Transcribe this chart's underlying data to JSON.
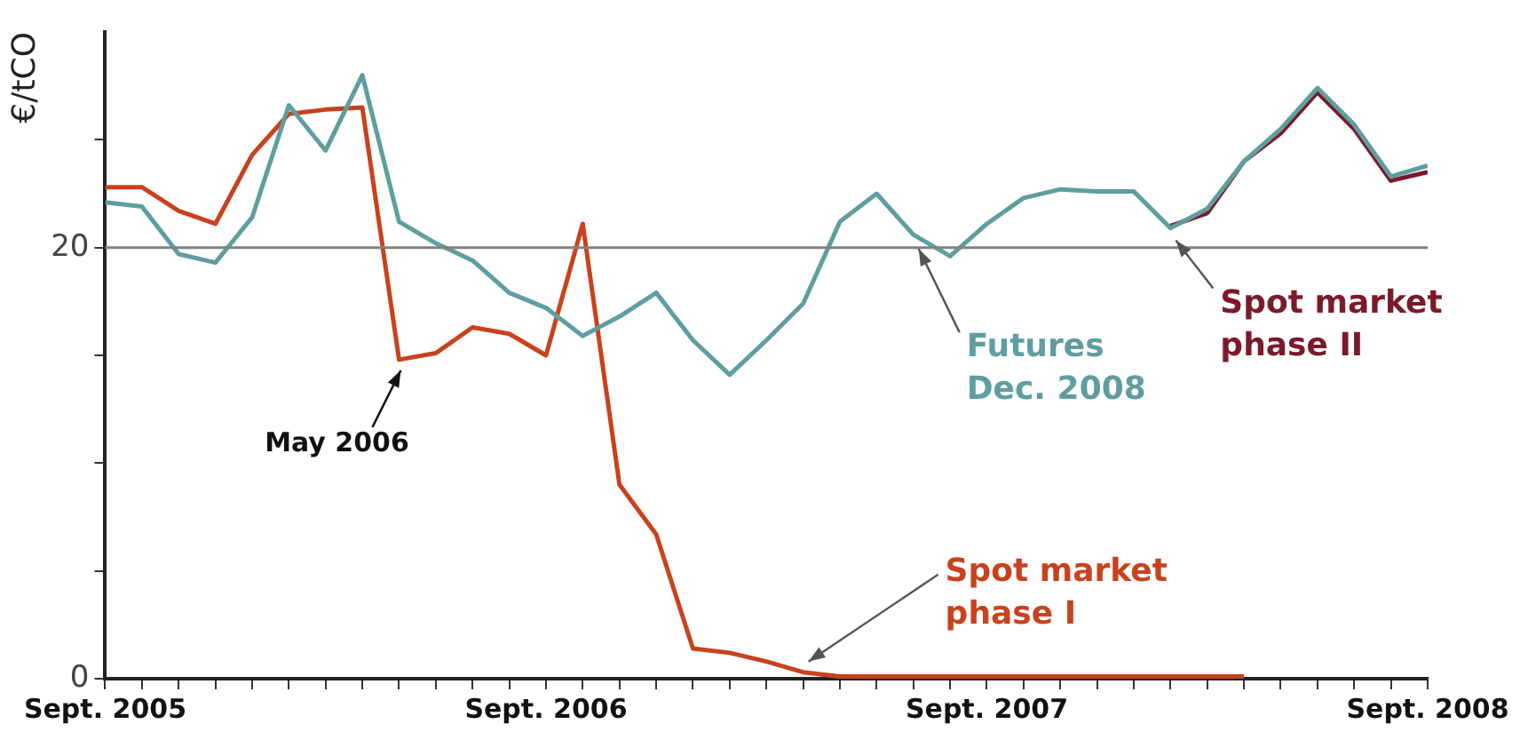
{
  "chart_data": {
    "type": "line",
    "ylabel": "€/tCO",
    "xlim": [
      "2005-09",
      "2008-09"
    ],
    "ylim": [
      0,
      30
    ],
    "xticks": [
      {
        "value": "2005-09",
        "label": "Sept. 2005"
      },
      {
        "value": "2005-10",
        "label": null
      },
      {
        "value": "2005-11",
        "label": null
      },
      {
        "value": "2005-12",
        "label": null
      },
      {
        "value": "2006-01",
        "label": null
      },
      {
        "value": "2006-02",
        "label": null
      },
      {
        "value": "2006-03",
        "label": null
      },
      {
        "value": "2006-04",
        "label": null
      },
      {
        "value": "2006-05",
        "label": null
      },
      {
        "value": "2006-06",
        "label": null
      },
      {
        "value": "2006-07",
        "label": null
      },
      {
        "value": "2006-08",
        "label": null
      },
      {
        "value": "2006-09",
        "label": "Sept. 2006"
      },
      {
        "value": "2006-10",
        "label": null
      },
      {
        "value": "2006-11",
        "label": null
      },
      {
        "value": "2006-12",
        "label": null
      },
      {
        "value": "2007-01",
        "label": null
      },
      {
        "value": "2007-02",
        "label": null
      },
      {
        "value": "2007-03",
        "label": null
      },
      {
        "value": "2007-04",
        "label": null
      },
      {
        "value": "2007-05",
        "label": null
      },
      {
        "value": "2007-06",
        "label": null
      },
      {
        "value": "2007-07",
        "label": null
      },
      {
        "value": "2007-08",
        "label": null
      },
      {
        "value": "2007-09",
        "label": "Sept. 2007"
      },
      {
        "value": "2007-10",
        "label": null
      },
      {
        "value": "2007-11",
        "label": null
      },
      {
        "value": "2007-12",
        "label": null
      },
      {
        "value": "2008-01",
        "label": null
      },
      {
        "value": "2008-02",
        "label": null
      },
      {
        "value": "2008-03",
        "label": null
      },
      {
        "value": "2008-04",
        "label": null
      },
      {
        "value": "2008-05",
        "label": null
      },
      {
        "value": "2008-06",
        "label": null
      },
      {
        "value": "2008-07",
        "label": null
      },
      {
        "value": "2008-08",
        "label": null
      },
      {
        "value": "2008-09",
        "label": "Sept. 2008"
      }
    ],
    "yticks": [
      0,
      {
        "value": 5,
        "label": null
      },
      {
        "value": 10,
        "label": null
      },
      {
        "value": 15,
        "label": null
      },
      20,
      {
        "value": 25,
        "label": null
      }
    ],
    "grid": false,
    "legend": false,
    "marker": "none",
    "line_style": "solid",
    "ref_lines": [
      {
        "axis": "y",
        "value": 20,
        "color": "#808080"
      }
    ],
    "annotations": [
      {
        "text": "May 2006",
        "x": "2006-05",
        "y": 14.8
      }
    ],
    "series": [
      {
        "name": "Futures Dec. 2008",
        "color": "#5f9ea0",
        "x": [
          "2005-09",
          "2005-10",
          "2005-11",
          "2005-12",
          "2006-01",
          "2006-02",
          "2006-03",
          "2006-04",
          "2006-05",
          "2006-06",
          "2006-07",
          "2006-08",
          "2006-09",
          "2006-10",
          "2006-11",
          "2006-12",
          "2007-01",
          "2007-02",
          "2007-03",
          "2007-04",
          "2007-05",
          "2007-06",
          "2007-07",
          "2007-08",
          "2007-09",
          "2007-10",
          "2007-11",
          "2007-12",
          "2008-01",
          "2008-02",
          "2008-03",
          "2008-04",
          "2008-05",
          "2008-06",
          "2008-07",
          "2008-08",
          "2008-09"
        ],
        "values": [
          22.1,
          21.9,
          19.7,
          19.3,
          21.4,
          26.6,
          24.5,
          28.0,
          21.2,
          20.2,
          19.4,
          17.9,
          17.2,
          15.9,
          16.8,
          17.9,
          15.7,
          14.1,
          15.7,
          17.4,
          21.2,
          22.5,
          20.6,
          19.6,
          21.1,
          22.3,
          22.7,
          22.6,
          22.6,
          20.9,
          21.8,
          24.0,
          25.5,
          27.4,
          25.7,
          23.3,
          23.8
        ]
      },
      {
        "name": "Spot market phase I",
        "color": "#c8421e",
        "x": [
          "2005-09",
          "2005-10",
          "2005-11",
          "2005-12",
          "2006-01",
          "2006-02",
          "2006-03",
          "2006-04",
          "2006-05",
          "2006-06",
          "2006-07",
          "2006-08",
          "2006-09",
          "2006-10",
          "2006-11",
          "2006-12",
          "2007-01",
          "2007-02",
          "2007-03",
          "2007-04",
          "2007-05",
          "2007-06",
          "2007-07",
          "2007-08",
          "2007-09",
          "2007-10",
          "2007-11",
          "2007-12",
          "2008-01",
          "2008-02",
          "2008-03",
          "2008-04"
        ],
        "values": [
          22.8,
          22.8,
          21.7,
          21.1,
          24.3,
          26.2,
          26.4,
          26.5,
          14.8,
          15.1,
          16.3,
          16.0,
          15.0,
          21.1,
          9.0,
          6.7,
          1.4,
          1.2,
          0.8,
          0.3,
          0.1,
          0.1,
          0.1,
          0.1,
          0.1,
          0.1,
          0.1,
          0.1,
          0.1,
          0.1,
          0.1,
          0.1
        ]
      },
      {
        "name": "Spot market phase II",
        "color": "#7a1a2a",
        "x": [
          "2008-02",
          "2008-03",
          "2008-04",
          "2008-05",
          "2008-06",
          "2008-07",
          "2008-08",
          "2008-09"
        ],
        "values": [
          21.0,
          21.6,
          24.0,
          25.3,
          27.2,
          25.5,
          23.1,
          23.5
        ]
      }
    ]
  }
}
